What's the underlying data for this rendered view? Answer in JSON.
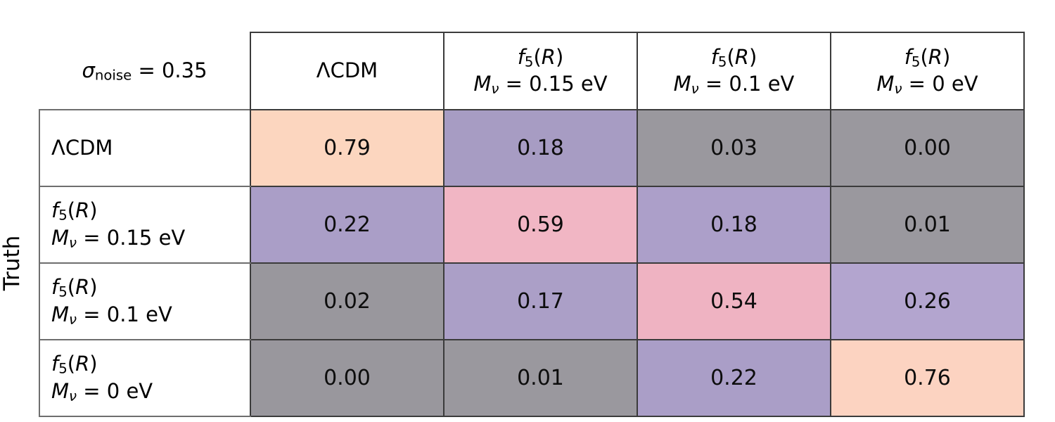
{
  "page": {
    "background": "#ffffff",
    "text_color": "#000000"
  },
  "truth_axis_label": "Truth",
  "corner_label": [
    {
      "t": "σ",
      "s": "i"
    },
    {
      "t": "noise",
      "s": "sub"
    },
    {
      "t": " = 0.35",
      "s": "n"
    }
  ],
  "columns": [
    {
      "name": "ΛCDM",
      "lines": [
        [
          {
            "t": "ΛCDM",
            "s": "n"
          }
        ]
      ]
    },
    {
      "name": "f5(R) Mν = 0.15 eV",
      "lines": [
        [
          {
            "t": "f",
            "s": "i"
          },
          {
            "t": "5",
            "s": "sub"
          },
          {
            "t": "(",
            "s": "n"
          },
          {
            "t": "R",
            "s": "i"
          },
          {
            "t": ")",
            "s": "n"
          }
        ],
        [
          {
            "t": "M",
            "s": "i"
          },
          {
            "t": "ν",
            "s": "isub"
          },
          {
            "t": " = 0.15 eV",
            "s": "n"
          }
        ]
      ]
    },
    {
      "name": "f5(R) Mν = 0.1 eV",
      "lines": [
        [
          {
            "t": "f",
            "s": "i"
          },
          {
            "t": "5",
            "s": "sub"
          },
          {
            "t": "(",
            "s": "n"
          },
          {
            "t": "R",
            "s": "i"
          },
          {
            "t": ")",
            "s": "n"
          }
        ],
        [
          {
            "t": "M",
            "s": "i"
          },
          {
            "t": "ν",
            "s": "isub"
          },
          {
            "t": " = 0.1 eV",
            "s": "n"
          }
        ]
      ]
    },
    {
      "name": "f5(R) Mν = 0 eV",
      "lines": [
        [
          {
            "t": "f",
            "s": "i"
          },
          {
            "t": "5",
            "s": "sub"
          },
          {
            "t": "(",
            "s": "n"
          },
          {
            "t": "R",
            "s": "i"
          },
          {
            "t": ")",
            "s": "n"
          }
        ],
        [
          {
            "t": "M",
            "s": "i"
          },
          {
            "t": "ν",
            "s": "isub"
          },
          {
            "t": " = 0 eV",
            "s": "n"
          }
        ]
      ]
    }
  ],
  "rows": [
    {
      "name": "ΛCDM",
      "label_lines": [
        [
          {
            "t": "ΛCDM",
            "s": "n"
          }
        ]
      ],
      "cells": [
        {
          "value": "0.79",
          "color": "#fcd6bf"
        },
        {
          "value": "0.18",
          "color": "#a79cc3"
        },
        {
          "value": "0.03",
          "color": "#9a989e"
        },
        {
          "value": "0.00",
          "color": "#9a989e"
        }
      ]
    },
    {
      "name": "f5(R) Mν = 0.15 eV",
      "label_lines": [
        [
          {
            "t": "f",
            "s": "i"
          },
          {
            "t": "5",
            "s": "sub"
          },
          {
            "t": "(",
            "s": "n"
          },
          {
            "t": "R",
            "s": "i"
          },
          {
            "t": ")",
            "s": "n"
          }
        ],
        [
          {
            "t": "M",
            "s": "i"
          },
          {
            "t": "ν",
            "s": "isub"
          },
          {
            "t": " = 0.15 eV",
            "s": "n"
          }
        ]
      ],
      "cells": [
        {
          "value": "0.22",
          "color": "#aa9ec7"
        },
        {
          "value": "0.59",
          "color": "#f1b6c4"
        },
        {
          "value": "0.18",
          "color": "#ac9fc9"
        },
        {
          "value": "0.01",
          "color": "#9a989e"
        }
      ]
    },
    {
      "name": "f5(R) Mν = 0.1 eV",
      "label_lines": [
        [
          {
            "t": "f",
            "s": "i"
          },
          {
            "t": "5",
            "s": "sub"
          },
          {
            "t": "(",
            "s": "n"
          },
          {
            "t": "R",
            "s": "i"
          },
          {
            "t": ")",
            "s": "n"
          }
        ],
        [
          {
            "t": "M",
            "s": "i"
          },
          {
            "t": "ν",
            "s": "isub"
          },
          {
            "t": " = 0.1 eV",
            "s": "n"
          }
        ]
      ],
      "cells": [
        {
          "value": "0.02",
          "color": "#99979d"
        },
        {
          "value": "0.17",
          "color": "#ab9fc7"
        },
        {
          "value": "0.54",
          "color": "#efb3c2"
        },
        {
          "value": "0.26",
          "color": "#b3a5cf"
        }
      ]
    },
    {
      "name": "f5(R) Mν = 0 eV",
      "label_lines": [
        [
          {
            "t": "f",
            "s": "i"
          },
          {
            "t": "5",
            "s": "sub"
          },
          {
            "t": "(",
            "s": "n"
          },
          {
            "t": "R",
            "s": "i"
          },
          {
            "t": ")",
            "s": "n"
          }
        ],
        [
          {
            "t": "M",
            "s": "i"
          },
          {
            "t": "ν",
            "s": "isub"
          },
          {
            "t": " = 0 eV",
            "s": "n"
          }
        ]
      ],
      "cells": [
        {
          "value": "0.00",
          "color": "#99979d"
        },
        {
          "value": "0.01",
          "color": "#9a989e"
        },
        {
          "value": "0.22",
          "color": "#aa9ec7"
        },
        {
          "value": "0.76",
          "color": "#fcd3c1"
        }
      ]
    }
  ],
  "chart_data": {
    "type": "heatmap",
    "title": "σ_noise = 0.35",
    "ylabel": "Truth",
    "xlabel": "",
    "x_categories": [
      "ΛCDM",
      "f5(R) Mν = 0.15 eV",
      "f5(R) Mν = 0.1 eV",
      "f5(R) Mν = 0 eV"
    ],
    "y_categories": [
      "ΛCDM",
      "f5(R) Mν = 0.15 eV",
      "f5(R) Mν = 0.1 eV",
      "f5(R) Mν = 0 eV"
    ],
    "values": [
      [
        0.79,
        0.18,
        0.03,
        0.0
      ],
      [
        0.22,
        0.59,
        0.18,
        0.01
      ],
      [
        0.02,
        0.17,
        0.54,
        0.26
      ],
      [
        0.0,
        0.01,
        0.22,
        0.76
      ]
    ],
    "value_range": [
      0,
      1
    ],
    "color_legend": {
      "high_~0.75-0.8": "#fcd5c0",
      "mid_~0.5-0.6": "#f0b4c3",
      "low_~0.15-0.3": "#ab9fc8",
      "near_zero": "#9a989e"
    },
    "grid": false,
    "legend": "none"
  }
}
